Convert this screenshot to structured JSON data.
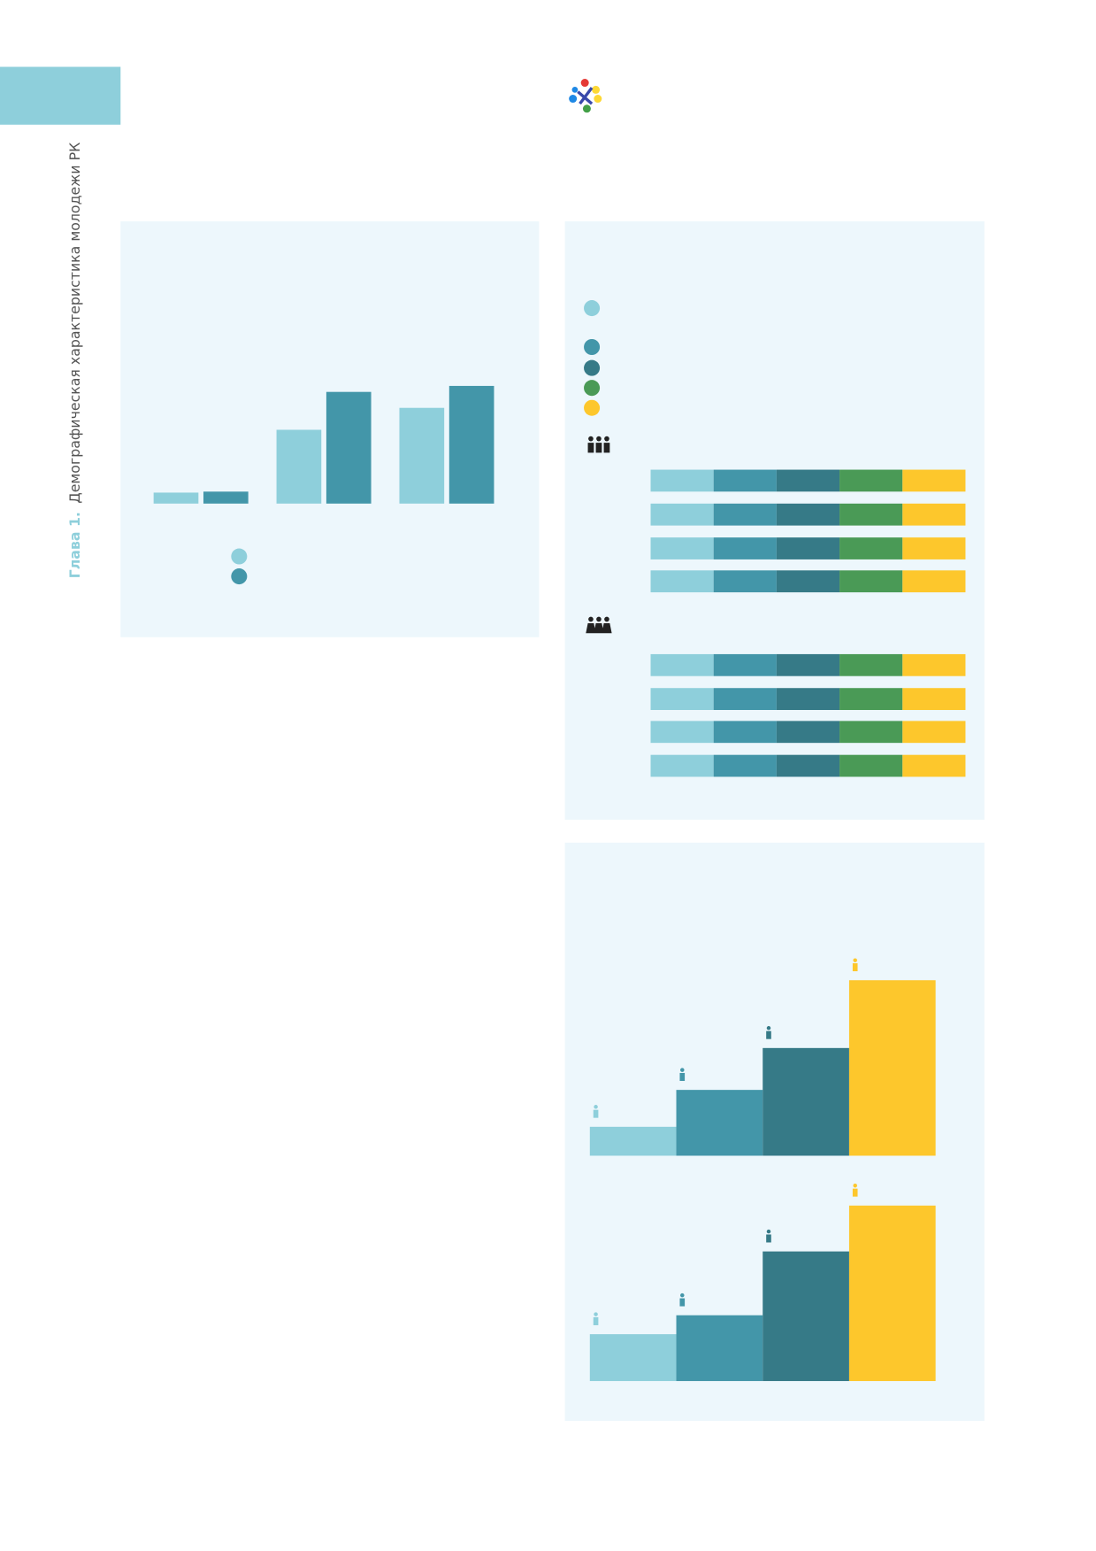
{
  "sidebar": {
    "chapter": "Глава 1.",
    "title": "Демографическая характеристика молодежи РК"
  },
  "chart_data": [
    {
      "type": "bar",
      "categories": [
        null,
        null,
        null
      ],
      "series": [
        {
          "color": "#8ecfdb",
          "values": [
            11,
            74,
            96
          ]
        },
        {
          "color": "#4396a9",
          "values": [
            12,
            112,
            118
          ]
        }
      ],
      "ylim": [
        0,
        130
      ]
    },
    {
      "type": "stacked_bar",
      "orientation": "horizontal",
      "categories": [
        null,
        null,
        null,
        null,
        null,
        null,
        null,
        null
      ],
      "series": [
        {
          "color": "#8ecfdb",
          "values": [
            20,
            20,
            20,
            20,
            20,
            20,
            20,
            20
          ]
        },
        {
          "color": "#4396a9",
          "values": [
            20,
            20,
            20,
            20,
            20,
            20,
            20,
            20
          ]
        },
        {
          "color": "#367a87",
          "values": [
            20,
            20,
            20,
            20,
            20,
            20,
            20,
            20
          ]
        },
        {
          "color": "#4a9a56",
          "values": [
            20,
            20,
            20,
            20,
            20,
            20,
            20,
            20
          ]
        },
        {
          "color": "#fdc72c",
          "values": [
            20,
            20,
            20,
            20,
            20,
            20,
            20,
            20
          ]
        }
      ],
      "xlim": [
        0,
        100
      ]
    },
    {
      "type": "step_bar",
      "categories": [
        null,
        null,
        null,
        null
      ],
      "values": [
        29,
        66,
        108,
        176
      ],
      "colors": [
        "#8ecfdb",
        "#4396a9",
        "#367a87",
        "#fdc72c"
      ],
      "ylim": [
        0,
        200
      ]
    },
    {
      "type": "step_bar",
      "categories": [
        null,
        null,
        null,
        null
      ],
      "values": [
        47,
        66,
        130,
        176
      ],
      "colors": [
        "#8ecfdb",
        "#4396a9",
        "#367a87",
        "#fdc72c"
      ],
      "ylim": [
        0,
        200
      ]
    }
  ]
}
